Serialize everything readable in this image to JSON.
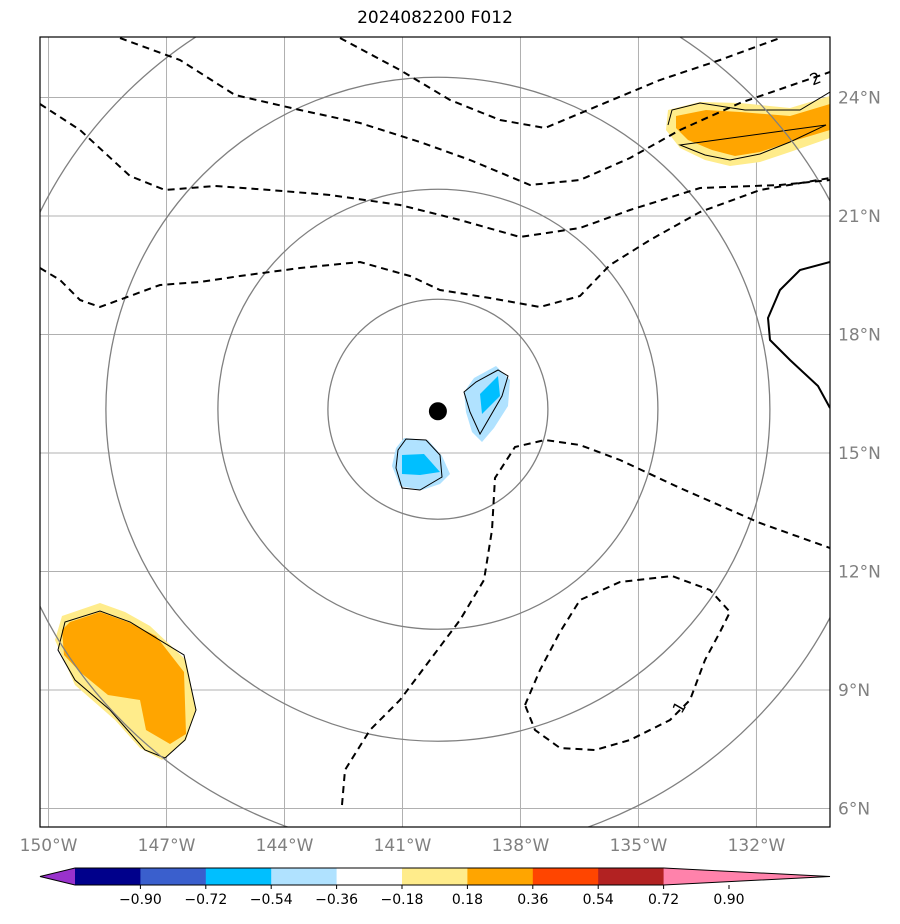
{
  "title": "2024082200 F012",
  "map": {
    "lon_ticks": [
      {
        "lon": -150,
        "label": "150°W"
      },
      {
        "lon": -147,
        "label": "147°W"
      },
      {
        "lon": -144,
        "label": "144°W"
      },
      {
        "lon": -141,
        "label": "141°W"
      },
      {
        "lon": -138,
        "label": "138°W"
      },
      {
        "lon": -135,
        "label": "135°W"
      },
      {
        "lon": -132,
        "label": "132°W"
      }
    ],
    "lat_ticks": [
      {
        "lat": 6,
        "label": "6°N"
      },
      {
        "lat": 9,
        "label": "9°N"
      },
      {
        "lat": 12,
        "label": "12°N"
      },
      {
        "lat": 15,
        "label": "15°N"
      },
      {
        "lat": 18,
        "label": "18°N"
      },
      {
        "lat": 21,
        "label": "21°N"
      },
      {
        "lat": 24,
        "label": "24°N"
      }
    ],
    "storm_center": {
      "lon": -140.1,
      "lat": 15.5
    },
    "range_rings_deg": [
      2.75,
      5.5,
      8.3,
      11.1
    ],
    "contour_labels": [
      "2",
      "1"
    ],
    "colors": {
      "grid": "#b0b0b0",
      "ring": "#808080",
      "contour": "#000000"
    }
  },
  "colorbar": {
    "labels": [
      "−0.90",
      "−0.72",
      "−0.54",
      "−0.36",
      "−0.18",
      "0.18",
      "0.36",
      "0.54",
      "0.72",
      "0.90"
    ],
    "colors": [
      "#9932cc",
      "#00008b",
      "#3a5fcd",
      "#00bfff",
      "#b0e2ff",
      "#ffffff",
      "#ffec8b",
      "#ffa500",
      "#ff4500",
      "#b22222",
      "#ff82ab"
    ]
  }
}
